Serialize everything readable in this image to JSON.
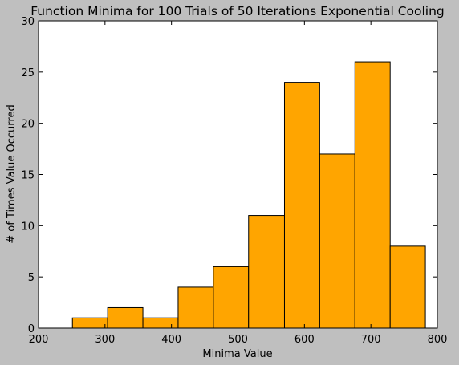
{
  "chart_data": {
    "type": "bar",
    "title": "Function Minima for 100 Trials of 50 Iterations Exponential Cooling",
    "xlabel": "Minima Value",
    "ylabel": "# of Times Value Occurred",
    "xlim": [
      200,
      800
    ],
    "ylim": [
      0,
      30
    ],
    "x_ticks": [
      200,
      300,
      400,
      500,
      600,
      700,
      800
    ],
    "y_ticks": [
      0,
      5,
      10,
      15,
      20,
      25,
      30
    ],
    "bar_color": "#ffa500",
    "edge_color": "#000000",
    "bins": [
      {
        "start": 251,
        "end": 304,
        "value": 1
      },
      {
        "start": 304,
        "end": 357,
        "value": 2
      },
      {
        "start": 357,
        "end": 410,
        "value": 1
      },
      {
        "start": 410,
        "end": 463,
        "value": 4
      },
      {
        "start": 463,
        "end": 516,
        "value": 6
      },
      {
        "start": 516,
        "end": 570,
        "value": 11
      },
      {
        "start": 570,
        "end": 623,
        "value": 24
      },
      {
        "start": 623,
        "end": 676,
        "value": 17
      },
      {
        "start": 676,
        "end": 729,
        "value": 26
      },
      {
        "start": 729,
        "end": 782,
        "value": 8
      }
    ],
    "grid": false
  }
}
